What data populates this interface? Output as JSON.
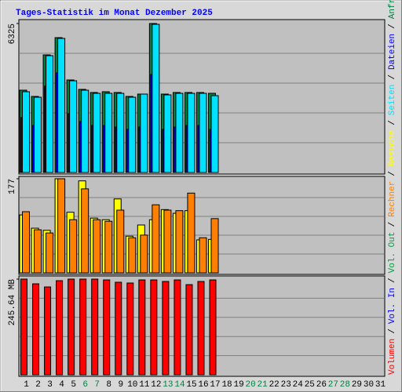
{
  "title": "Tages-Statistik im Monat Dezember 2025",
  "categories": [
    "1",
    "2",
    "3",
    "4",
    "5",
    "6",
    "7",
    "8",
    "9",
    "10",
    "11",
    "12",
    "13",
    "14",
    "15",
    "16",
    "17",
    "18",
    "19",
    "20",
    "21",
    "22",
    "23",
    "24",
    "25",
    "26",
    "27",
    "28",
    "29",
    "30",
    "31"
  ],
  "category_colors": [
    "#000000",
    "#000000",
    "#000000",
    "#000000",
    "#000000",
    "#008040",
    "#008040",
    "#000000",
    "#000000",
    "#000000",
    "#000000",
    "#000000",
    "#008040",
    "#008040",
    "#000000",
    "#000000",
    "#000000",
    "#000000",
    "#000000",
    "#008040",
    "#008040",
    "#000000",
    "#000000",
    "#000000",
    "#000000",
    "#000000",
    "#008040",
    "#008040",
    "#000000",
    "#000000",
    "#000000"
  ],
  "legend_separator": "/",
  "chart_data": [
    {
      "type": "bar",
      "ylim": [
        0,
        6325
      ],
      "yticks": [
        6325
      ],
      "gridlines": [
        1265,
        2530,
        3795,
        5060
      ],
      "series": [
        {
          "name": "Anfragen",
          "color": "#008040",
          "values": [
            3495,
            3229,
            4993,
            5726,
            3928,
            3529,
            3396,
            3429,
            3396,
            3229,
            3329,
            6325,
            3329,
            3396,
            3396,
            3396,
            3362,
            null,
            null,
            null,
            null,
            null,
            null,
            null,
            null,
            null,
            null,
            null,
            null,
            null,
            null
          ]
        },
        {
          "name": "Dateien",
          "color": "#0000ff",
          "values": [
            2330,
            1997,
            3662,
            4228,
            2497,
            2164,
            1997,
            1997,
            1931,
            1831,
            1931,
            4161,
            1831,
            1931,
            1997,
            1997,
            1831,
            null,
            null,
            null,
            null,
            null,
            null,
            null,
            null,
            null,
            null,
            null,
            null,
            null,
            null
          ]
        },
        {
          "name": "Seiten",
          "color": "#00e0ff",
          "values": [
            3429,
            3196,
            4960,
            5693,
            3895,
            3495,
            3362,
            3362,
            3362,
            3196,
            3329,
            6292,
            3296,
            3362,
            3362,
            3362,
            3262,
            null,
            null,
            null,
            null,
            null,
            null,
            null,
            null,
            null,
            null,
            null,
            null,
            null,
            null
          ]
        }
      ]
    },
    {
      "type": "bar",
      "ylim": [
        0,
        177
      ],
      "yticks": [
        177
      ],
      "gridlines": [
        35.4,
        70.8,
        106.2,
        141.6
      ],
      "series": [
        {
          "name": "Besuche",
          "color": "#ffff00",
          "values": [
            109,
            84,
            80,
            177,
            114,
            173,
            103,
            100,
            139,
            69,
            90,
            100,
            119,
            112,
            117,
            62,
            63,
            null,
            null,
            null,
            null,
            null,
            null,
            null,
            null,
            null,
            null,
            null,
            null,
            null,
            null
          ]
        },
        {
          "name": "Rechner",
          "color": "#ff8000",
          "values": [
            115,
            81,
            75,
            177,
            100,
            158,
            100,
            97,
            118,
            66,
            71,
            128,
            118,
            117,
            150,
            66,
            102,
            null,
            null,
            null,
            null,
            null,
            null,
            null,
            null,
            null,
            null,
            null,
            null,
            null,
            null
          ]
        }
      ]
    },
    {
      "type": "bar",
      "ylim": [
        0,
        245.64
      ],
      "yticks": [
        {
          "value": 245.64,
          "label": "245.64 MB"
        }
      ],
      "gridlines": [
        49.128,
        98.256,
        147.384,
        196.512
      ],
      "series": [
        {
          "name": "Vol. Out",
          "color": "#00a040",
          "values": [
            null,
            null,
            null,
            null,
            null,
            null,
            null,
            null,
            null,
            null,
            null,
            null,
            null,
            null,
            null,
            null,
            null,
            null,
            null,
            null,
            null,
            null,
            null,
            null,
            null,
            null,
            null,
            null,
            null,
            null,
            null
          ]
        },
        {
          "name": "Vol. In",
          "color": "#0000ff",
          "values": [
            null,
            null,
            null,
            null,
            null,
            null,
            null,
            null,
            null,
            null,
            null,
            null,
            null,
            null,
            null,
            null,
            null,
            null,
            null,
            null,
            null,
            null,
            null,
            null,
            null,
            null,
            null,
            null,
            null,
            null,
            null
          ]
        },
        {
          "name": "Volumen",
          "color": "#ff0000",
          "values": [
            245.64,
            233.56,
            225.5,
            241.6,
            245.64,
            245.64,
            245.64,
            243.6,
            237.6,
            235.6,
            243.6,
            243.6,
            239.6,
            243.6,
            231.5,
            239.6,
            243.6,
            null,
            null,
            null,
            null,
            null,
            null,
            null,
            null,
            null,
            null,
            null,
            null,
            null,
            null
          ]
        }
      ]
    }
  ]
}
